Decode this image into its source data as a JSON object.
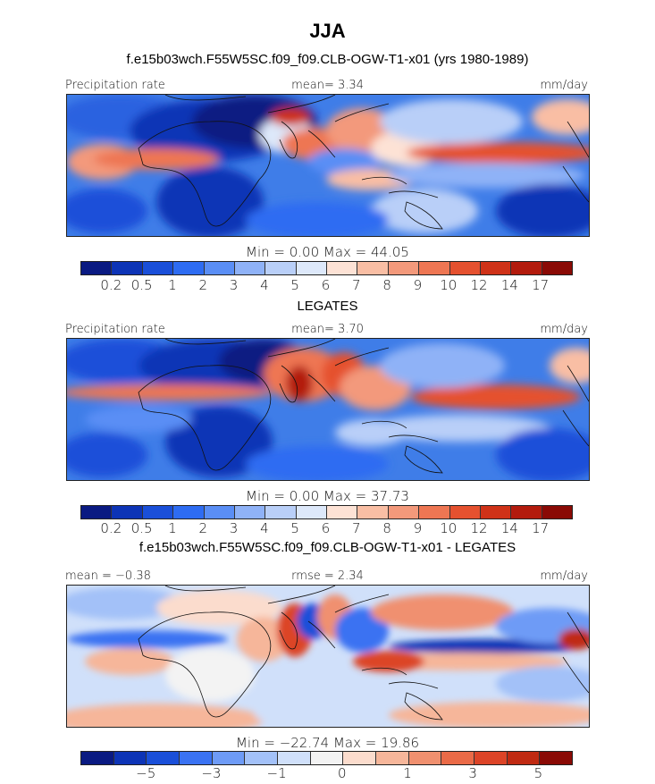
{
  "title": "JJA",
  "panels": [
    {
      "heading": "f.e15b03wch.F55W5SC.f09_f09.CLB-OGW-T1-x01 (yrs 1980-1989)",
      "left_label": "Precipitation rate",
      "center_label": "mean=    3.34",
      "right_label": "mm/day",
      "minmax": "Min =    0.00  Max =   44.05",
      "colorbar_ticks": [
        "0.2",
        "0.5",
        "1",
        "2",
        "3",
        "4",
        "5",
        "6",
        "7",
        "8",
        "9",
        "10",
        "12",
        "14",
        "17"
      ]
    },
    {
      "heading": "LEGATES",
      "left_label": "Precipitation rate",
      "center_label": "mean=    3.70",
      "right_label": "mm/day",
      "minmax": "Min =    0.00  Max =   37.73",
      "colorbar_ticks": [
        "0.2",
        "0.5",
        "1",
        "2",
        "3",
        "4",
        "5",
        "6",
        "7",
        "8",
        "9",
        "10",
        "12",
        "14",
        "17"
      ]
    },
    {
      "heading": "f.e15b03wch.F55W5SC.f09_f09.CLB-OGW-T1-x01 - LEGATES",
      "left_label": "mean =  −0.38",
      "center_label": "rmse =    2.34",
      "right_label": "mm/day",
      "minmax": "Min = −22.74  Max =   19.86",
      "colorbar_ticks": [
        "−5",
        "−3",
        "−1",
        "0",
        "1",
        "3",
        "5"
      ]
    }
  ],
  "colors": {
    "sequential": [
      "#0a1a82",
      "#0d34b6",
      "#1a4fd9",
      "#2e6cf2",
      "#5a8ef5",
      "#8fb2f7",
      "#b9cff8",
      "#dde8fa",
      "#fde2d5",
      "#f9bea4",
      "#f3997b",
      "#ee7653",
      "#e5512f",
      "#cf3218",
      "#b31b0d",
      "#8a0a05"
    ],
    "diverging": [
      "#0a1a82",
      "#0d34b6",
      "#1a4fd9",
      "#3a72f2",
      "#6e9bf6",
      "#a3c1f8",
      "#d0e0fa",
      "#f3f3f3",
      "#fbdccd",
      "#f6b69a",
      "#f0906f",
      "#ea6a47",
      "#dc4427",
      "#c02a12",
      "#8a0a05"
    ]
  }
}
